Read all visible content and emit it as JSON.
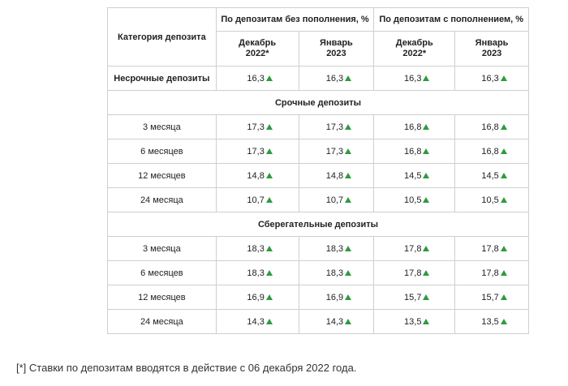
{
  "table": {
    "category_header": "Категория депозита",
    "group_headers": [
      "По депозитам без пополнения, %",
      "По депозитам с пополнением, %"
    ],
    "month_headers": [
      "Декабрь 2022*",
      "Январь 2023",
      "Декабрь 2022*",
      "Январь 2023"
    ],
    "nonterm_row": {
      "label": "Несрочные депозиты",
      "values": [
        "16,3",
        "16,3",
        "16,3",
        "16,3"
      ]
    },
    "term_section": "Срочные депозиты",
    "term_rows": [
      {
        "label": "3 месяца",
        "values": [
          "17,3",
          "17,3",
          "16,8",
          "16,8"
        ]
      },
      {
        "label": "6 месяцев",
        "values": [
          "17,3",
          "17,3",
          "16,8",
          "16,8"
        ]
      },
      {
        "label": "12 месяцев",
        "values": [
          "14,8",
          "14,8",
          "14,5",
          "14,5"
        ]
      },
      {
        "label": "24 месяца",
        "values": [
          "10,7",
          "10,7",
          "10,5",
          "10,5"
        ]
      }
    ],
    "savings_section": "Сберегательные депозиты",
    "savings_rows": [
      {
        "label": "3 месяца",
        "values": [
          "18,3",
          "18,3",
          "17,8",
          "17,8"
        ]
      },
      {
        "label": "6 месяцев",
        "values": [
          "18,3",
          "18,3",
          "17,8",
          "17,8"
        ]
      },
      {
        "label": "12 месяцев",
        "values": [
          "16,9",
          "16,9",
          "15,7",
          "15,7"
        ]
      },
      {
        "label": "24 месяца",
        "values": [
          "14,3",
          "14,3",
          "13,5",
          "13,5"
        ]
      }
    ],
    "trend_icon": "up-triangle-icon",
    "trend_color": "#2e9b3e"
  },
  "footnote": "[*] Ставки по депозитам вводятся в действие с 06 декабря 2022 года."
}
